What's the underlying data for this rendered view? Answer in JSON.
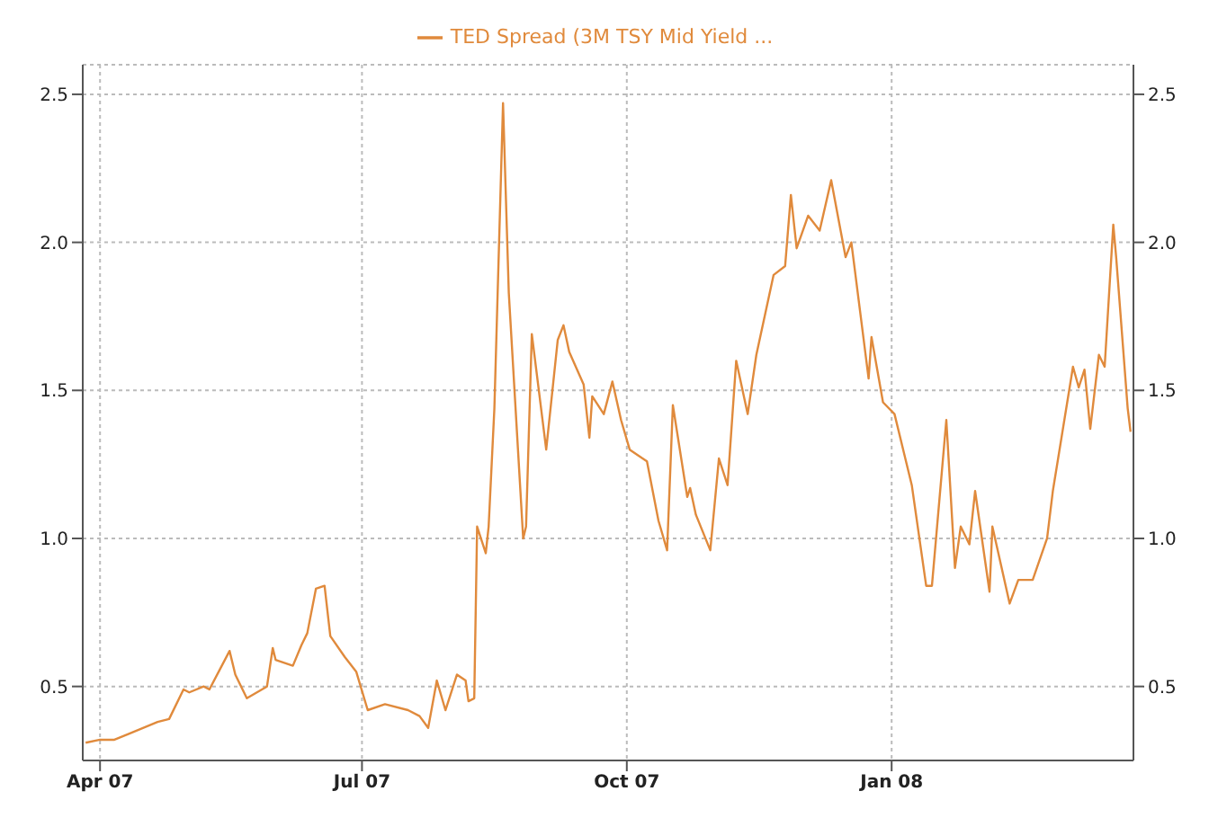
{
  "chart_data": {
    "type": "line",
    "x": [
      "2007-03-27",
      "2007-04-01",
      "2007-04-06",
      "2007-04-11",
      "2007-04-21",
      "2007-04-25",
      "2007-04-30",
      "2007-05-02",
      "2007-05-07",
      "2007-05-09",
      "2007-05-16",
      "2007-05-18",
      "2007-05-22",
      "2007-05-29",
      "2007-05-31",
      "2007-06-01",
      "2007-06-07",
      "2007-06-10",
      "2007-06-12",
      "2007-06-15",
      "2007-06-18",
      "2007-06-20",
      "2007-06-25",
      "2007-06-29",
      "2007-07-03",
      "2007-07-09",
      "2007-07-17",
      "2007-07-21",
      "2007-07-24",
      "2007-07-27",
      "2007-07-30",
      "2007-08-03",
      "2007-08-06",
      "2007-08-07",
      "2007-08-09",
      "2007-08-10",
      "2007-08-13",
      "2007-08-14",
      "2007-08-16",
      "2007-08-19",
      "2007-08-21",
      "2007-08-26",
      "2007-08-27",
      "2007-08-29",
      "2007-09-03",
      "2007-09-07",
      "2007-09-09",
      "2007-09-11",
      "2007-09-16",
      "2007-09-18",
      "2007-09-19",
      "2007-09-23",
      "2007-09-26",
      "2007-09-29",
      "2007-10-02",
      "2007-10-08",
      "2007-10-12",
      "2007-10-15",
      "2007-10-17",
      "2007-10-22",
      "2007-10-23",
      "2007-10-25",
      "2007-10-30",
      "2007-11-02",
      "2007-11-05",
      "2007-11-08",
      "2007-11-12",
      "2007-11-15",
      "2007-11-21",
      "2007-11-25",
      "2007-11-27",
      "2007-11-29",
      "2007-12-03",
      "2007-12-07",
      "2007-12-11",
      "2007-12-16",
      "2007-12-18",
      "2007-12-21",
      "2007-12-24",
      "2007-12-25",
      "2007-12-29",
      "2008-01-02",
      "2008-01-08",
      "2008-01-13",
      "2008-01-15",
      "2008-01-20",
      "2008-01-23",
      "2008-01-25",
      "2008-01-28",
      "2008-01-30",
      "2008-02-04",
      "2008-02-05",
      "2008-02-11",
      "2008-02-14",
      "2008-02-19",
      "2008-02-24",
      "2008-02-26",
      "2008-03-04",
      "2008-03-06",
      "2008-03-08",
      "2008-03-10",
      "2008-03-13",
      "2008-03-15",
      "2008-03-18",
      "2008-03-19",
      "2008-03-23",
      "2008-03-24"
    ],
    "series": [
      {
        "name": "TED Spread (3M TSY Mid Yield ...",
        "color": "#e08a3c",
        "values": [
          0.31,
          0.32,
          0.32,
          0.34,
          0.38,
          0.39,
          0.49,
          0.48,
          0.5,
          0.49,
          0.62,
          0.54,
          0.46,
          0.5,
          0.63,
          0.59,
          0.57,
          0.64,
          0.68,
          0.83,
          0.84,
          0.67,
          0.6,
          0.55,
          0.42,
          0.44,
          0.42,
          0.4,
          0.36,
          0.52,
          0.42,
          0.54,
          0.52,
          0.45,
          0.46,
          1.04,
          0.95,
          1.04,
          1.44,
          2.47,
          1.83,
          1.0,
          1.04,
          1.69,
          1.3,
          1.67,
          1.72,
          1.63,
          1.52,
          1.34,
          1.48,
          1.42,
          1.53,
          1.4,
          1.3,
          1.26,
          1.06,
          0.96,
          1.45,
          1.14,
          1.17,
          1.08,
          0.96,
          1.27,
          1.18,
          1.6,
          1.42,
          1.62,
          1.89,
          1.92,
          2.16,
          1.98,
          2.09,
          2.04,
          2.21,
          1.95,
          2.0,
          1.77,
          1.54,
          1.68,
          1.46,
          1.42,
          1.18,
          0.84,
          0.84,
          1.4,
          0.9,
          1.04,
          0.98,
          1.16,
          0.82,
          1.04,
          0.78,
          0.86,
          0.86,
          1.0,
          1.16,
          1.58,
          1.51,
          1.57,
          1.37,
          1.62,
          1.58,
          2.06,
          1.95,
          1.44,
          1.36
        ]
      }
    ],
    "xlim": [
      "2007-03-26",
      "2008-03-25"
    ],
    "xticks": [
      {
        "value": "2007-04-01",
        "label": "Apr 07"
      },
      {
        "value": "2007-07-01",
        "label": "Jul 07"
      },
      {
        "value": "2007-10-01",
        "label": "Oct 07"
      },
      {
        "value": "2008-01-01",
        "label": "Jan 08"
      }
    ],
    "ylim": [
      0.25,
      2.6
    ],
    "yticks": [
      0.5,
      {
        "value": 1,
        "label": "1.0"
      },
      1.5,
      {
        "value": 2,
        "label": "2.0"
      },
      2.5
    ],
    "y2lim": [
      0.25,
      2.6
    ],
    "y2ticks": [
      0.5,
      {
        "value": 1,
        "label": "1.0"
      },
      1.5,
      {
        "value": 2,
        "label": "2.0"
      },
      2.5
    ],
    "grid": true,
    "legend": "top",
    "line_style": "solid",
    "marker": "none"
  }
}
